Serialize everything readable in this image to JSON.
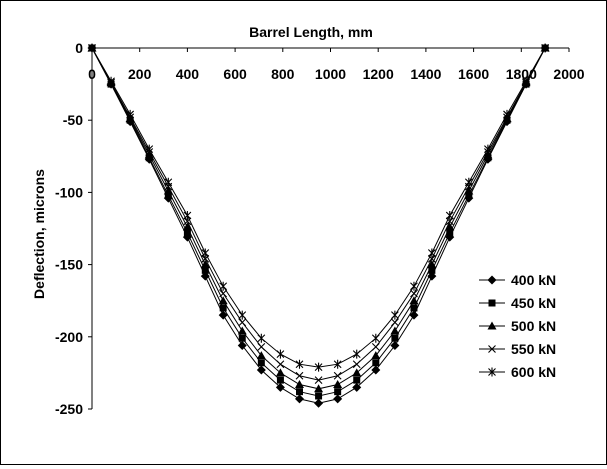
{
  "chart_data": {
    "type": "line",
    "title": "",
    "xlabel": "Barrel Length, mm",
    "ylabel": "Deflection, microns",
    "xlim": [
      0,
      2000
    ],
    "ylim": [
      -250,
      0
    ],
    "x_ticks": [
      0,
      200,
      400,
      600,
      800,
      1000,
      1200,
      1400,
      1600,
      1800,
      2000
    ],
    "y_ticks": [
      0,
      -50,
      -100,
      -150,
      -200,
      -250
    ],
    "x_axis_position": "top",
    "grid": false,
    "legend_position": "right",
    "x": [
      0,
      80,
      160,
      240,
      320,
      400,
      475,
      550,
      630,
      710,
      790,
      870,
      950,
      1030,
      1110,
      1190,
      1270,
      1350,
      1425,
      1500,
      1580,
      1660,
      1740,
      1820,
      1900
    ],
    "series": [
      {
        "name": "400 kN",
        "marker": "diamond",
        "values": [
          0,
          -25,
          -51,
          -77,
          -104,
          -131,
          -158,
          -185,
          -206,
          -223,
          -235,
          -243,
          -246,
          -243,
          -235,
          -223,
          -206,
          -185,
          -158,
          -131,
          -104,
          -77,
          -51,
          -25,
          0
        ]
      },
      {
        "name": "450 kN",
        "marker": "square",
        "values": [
          0,
          -25,
          -50,
          -76,
          -102,
          -128,
          -154,
          -180,
          -201,
          -218,
          -230,
          -238,
          -241,
          -238,
          -230,
          -218,
          -201,
          -180,
          -154,
          -128,
          -102,
          -76,
          -50,
          -25,
          0
        ]
      },
      {
        "name": "500 kN",
        "marker": "triangle",
        "values": [
          0,
          -24,
          -49,
          -74,
          -99,
          -124,
          -150,
          -175,
          -196,
          -213,
          -225,
          -233,
          -236,
          -233,
          -225,
          -213,
          -196,
          -175,
          -150,
          -124,
          -99,
          -74,
          -49,
          -24,
          0
        ]
      },
      {
        "name": "550 kN",
        "marker": "x",
        "values": [
          0,
          -24,
          -48,
          -72,
          -96,
          -120,
          -146,
          -170,
          -190,
          -207,
          -219,
          -227,
          -230,
          -227,
          -219,
          -207,
          -190,
          -170,
          -146,
          -120,
          -96,
          -72,
          -48,
          -24,
          0
        ]
      },
      {
        "name": "600 kN",
        "marker": "asterisk",
        "values": [
          0,
          -23,
          -46,
          -70,
          -93,
          -116,
          -142,
          -165,
          -185,
          -201,
          -212,
          -219,
          -221,
          -219,
          -212,
          -201,
          -185,
          -165,
          -142,
          -116,
          -93,
          -70,
          -46,
          -23,
          0
        ]
      }
    ]
  }
}
